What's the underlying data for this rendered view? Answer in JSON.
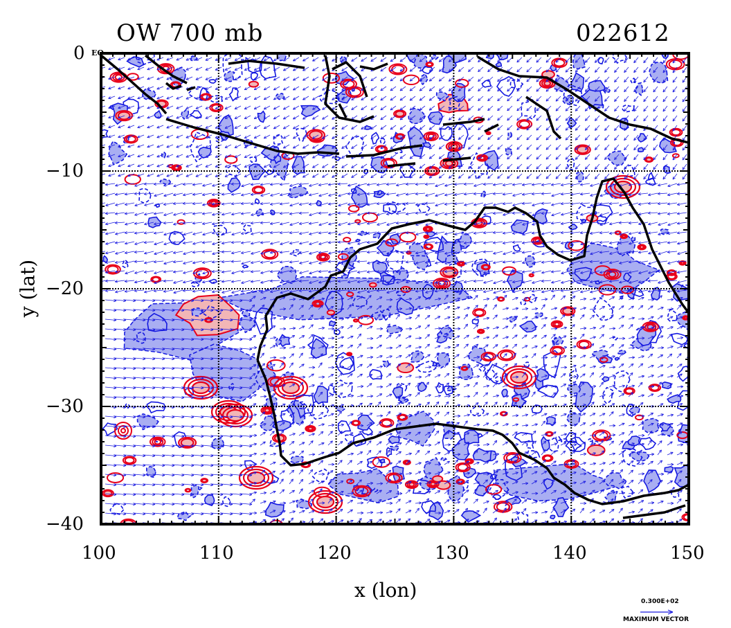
{
  "header": {
    "left_title": "OW 700 mb",
    "right_title": "022612"
  },
  "map": {
    "equator_label": "EQ",
    "lon_range": [
      100,
      150
    ],
    "lat_range": [
      -40,
      0
    ],
    "colors": {
      "positive_fill": "#f2b6b6",
      "positive_line": "#e8001a",
      "negative_fill": "#a9aef2",
      "negative_line": "#1418e0",
      "vector": "#1a1ae0",
      "coast": "#000000",
      "grid": "#000000"
    }
  },
  "chart_data": {
    "type": "map",
    "title": "OW 700 mb",
    "time_label": "022612",
    "xlabel": "x (lon)",
    "ylabel": "y (lat)",
    "xlim": [
      100,
      150
    ],
    "ylim": [
      -40,
      0
    ],
    "x_ticks": [
      100,
      110,
      120,
      130,
      140,
      150
    ],
    "x_tick_labels": [
      "100",
      "110",
      "120",
      "130",
      "140",
      "150"
    ],
    "y_ticks": [
      0,
      -10,
      -20,
      -30,
      -40
    ],
    "y_tick_labels": [
      "0",
      "−10",
      "−20",
      "−30",
      "−40"
    ],
    "grid": true,
    "fields": [
      "OW contours (positive, red)",
      "OW contours (negative, blue)",
      "700 mb wind vectors"
    ]
  },
  "legend": {
    "vector_value": "0.300E+02",
    "vector_label": "MAXIMUM VECTOR"
  }
}
